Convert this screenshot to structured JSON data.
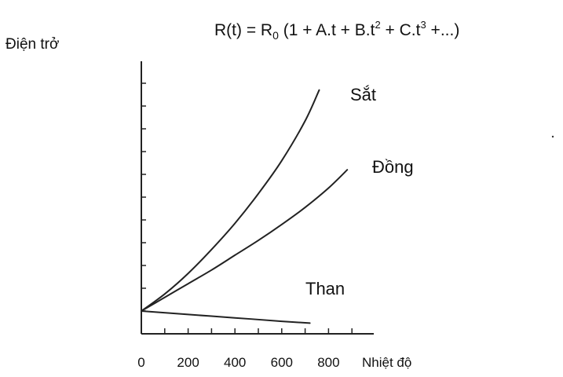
{
  "chart_data": {
    "type": "line",
    "formula": {
      "prefix": "R(t) = R",
      "sub": "0",
      "part1": " (1 + A.t + B.t",
      "sup1": "2",
      "part2": " + C.t",
      "sup2": "3",
      "part3": " +...)"
    },
    "ylabel": "Điện trở",
    "xlabel": "Nhiệt độ",
    "x_ticks": [
      "0",
      "200",
      "400",
      "600",
      "800"
    ],
    "xlim": [
      0,
      1000
    ],
    "ylim": [
      0,
      11
    ],
    "series": [
      {
        "name": "Sắt",
        "x": [
          0,
          100,
          200,
          300,
          400,
          500,
          600,
          700,
          760
        ],
        "y": [
          1.0,
          1.75,
          2.65,
          3.7,
          4.85,
          6.15,
          7.6,
          9.35,
          10.7
        ]
      },
      {
        "name": "Đồng",
        "x": [
          0,
          100,
          200,
          300,
          400,
          500,
          600,
          700,
          800,
          880
        ],
        "y": [
          1.0,
          1.6,
          2.2,
          2.8,
          3.45,
          4.1,
          4.8,
          5.55,
          6.4,
          7.2
        ]
      },
      {
        "name": "Than",
        "x": [
          0,
          200,
          400,
          600,
          720
        ],
        "y": [
          1.0,
          0.85,
          0.7,
          0.55,
          0.47
        ]
      }
    ],
    "colors": {
      "line": "#222222",
      "text": "#111111",
      "background": "#ffffff"
    }
  }
}
